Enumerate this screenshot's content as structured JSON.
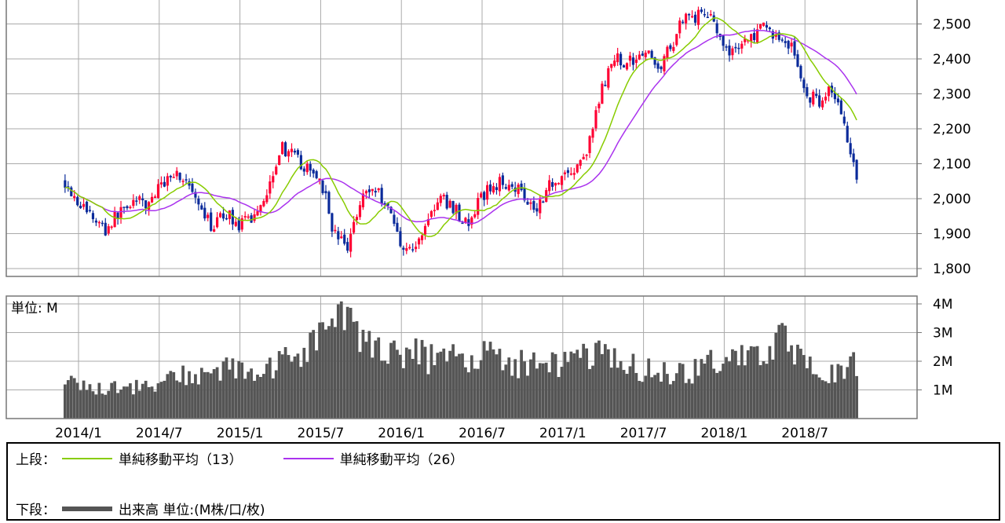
{
  "colors": {
    "up": "#ff0033",
    "down": "#0a2a9a",
    "ma13": "#88cc00",
    "ma26": "#aa33ee",
    "volume": "#555555",
    "grid": "#aaaaaa",
    "frame": "#777777"
  },
  "legend": {
    "upper_label": "上段：",
    "lower_label": "下段：",
    "items": [
      {
        "name": "単純移動平均（13）",
        "color": "#88cc00",
        "style": "line"
      },
      {
        "name": "単純移動平均（26）",
        "color": "#aa33ee",
        "style": "line"
      }
    ],
    "volume_item": {
      "name": "出来高 単位:(M株/口/枚)",
      "color": "#555555",
      "style": "thick"
    }
  },
  "chart_data": [
    {
      "type": "candlestick",
      "price_ylim": [
        1800,
        2560
      ],
      "price_ticks": [
        "1,800",
        "1,900",
        "2,000",
        "2,100",
        "2,200",
        "2,300",
        "2,400",
        "2,500"
      ],
      "price_tick_values": [
        1800,
        1900,
        2000,
        2100,
        2200,
        2300,
        2400,
        2500
      ],
      "x_ticks": [
        "2014/1",
        "2014/7",
        "2015/1",
        "2015/7",
        "2016/1",
        "2016/7",
        "2017/1",
        "2017/7",
        "2018/1",
        "2018/7"
      ],
      "x_range_months": "2013/12 – 2018/11",
      "price_path": [
        [
          "2013/12",
          2050
        ],
        [
          "2014/1",
          1990
        ],
        [
          "2014/2",
          1950
        ],
        [
          "2014/3",
          1910
        ],
        [
          "2014/4",
          1960
        ],
        [
          "2014/5",
          1995
        ],
        [
          "2014/6",
          1980
        ],
        [
          "2014/7",
          2030
        ],
        [
          "2014/8",
          2080
        ],
        [
          "2014/9",
          2050
        ],
        [
          "2014/10",
          1960
        ],
        [
          "2014/11",
          1920
        ],
        [
          "2014/12",
          1960
        ],
        [
          "2015/1",
          1920
        ],
        [
          "2015/2",
          1950
        ],
        [
          "2015/3",
          2020
        ],
        [
          "2015/4",
          2150
        ],
        [
          "2015/5",
          2120
        ],
        [
          "2015/6",
          2080
        ],
        [
          "2015/7",
          2060
        ],
        [
          "2015/8",
          1900
        ],
        [
          "2015/9",
          1860
        ],
        [
          "2015/10",
          2010
        ],
        [
          "2015/11",
          2030
        ],
        [
          "2015/12",
          1980
        ],
        [
          "2016/1",
          1870
        ],
        [
          "2016/2",
          1850
        ],
        [
          "2016/3",
          1950
        ],
        [
          "2016/4",
          2000
        ],
        [
          "2016/5",
          1970
        ],
        [
          "2016/6",
          1920
        ],
        [
          "2016/7",
          2010
        ],
        [
          "2016/8",
          2040
        ],
        [
          "2016/9",
          2050
        ],
        [
          "2016/10",
          2020
        ],
        [
          "2016/11",
          1970
        ],
        [
          "2016/12",
          2040
        ],
        [
          "2017/1",
          2070
        ],
        [
          "2017/2",
          2080
        ],
        [
          "2017/3",
          2160
        ],
        [
          "2017/4",
          2330
        ],
        [
          "2017/5",
          2400
        ],
        [
          "2017/6",
          2390
        ],
        [
          "2017/7",
          2430
        ],
        [
          "2017/8",
          2370
        ],
        [
          "2017/9",
          2430
        ],
        [
          "2017/10",
          2530
        ],
        [
          "2017/11",
          2520
        ],
        [
          "2017/12",
          2540
        ],
        [
          "2018/1",
          2410
        ],
        [
          "2018/2",
          2440
        ],
        [
          "2018/3",
          2460
        ],
        [
          "2018/4",
          2490
        ],
        [
          "2018/5",
          2460
        ],
        [
          "2018/6",
          2440
        ],
        [
          "2018/7",
          2300
        ],
        [
          "2018/8",
          2280
        ],
        [
          "2018/9",
          2320
        ],
        [
          "2018/10",
          2200
        ],
        [
          "2018/11",
          2050
        ]
      ]
    },
    {
      "type": "bar",
      "title": "単位: M",
      "volume_ylim": [
        0,
        4
      ],
      "volume_ticks": [
        "1M",
        "2M",
        "3M",
        "4M"
      ],
      "volume_tick_values": [
        1,
        2,
        3,
        4
      ],
      "volume_path_M": [
        [
          "2013/12",
          1.2
        ],
        [
          "2014/3",
          1.1
        ],
        [
          "2014/6",
          1.1
        ],
        [
          "2014/9",
          1.5
        ],
        [
          "2014/12",
          1.7
        ],
        [
          "2015/3",
          1.6
        ],
        [
          "2015/6",
          2.5
        ],
        [
          "2015/8",
          3.6
        ],
        [
          "2015/10",
          2.8
        ],
        [
          "2016/1",
          2.4
        ],
        [
          "2016/4",
          2.0
        ],
        [
          "2016/7",
          2.3
        ],
        [
          "2016/10",
          1.9
        ],
        [
          "2017/1",
          1.9
        ],
        [
          "2017/4",
          2.2
        ],
        [
          "2017/7",
          1.7
        ],
        [
          "2017/10",
          1.5
        ],
        [
          "2018/1",
          2.2
        ],
        [
          "2018/3",
          2.0
        ],
        [
          "2018/5",
          2.9
        ],
        [
          "2018/7",
          1.8
        ],
        [
          "2018/9",
          1.5
        ],
        [
          "2018/11",
          1.9
        ]
      ]
    }
  ]
}
